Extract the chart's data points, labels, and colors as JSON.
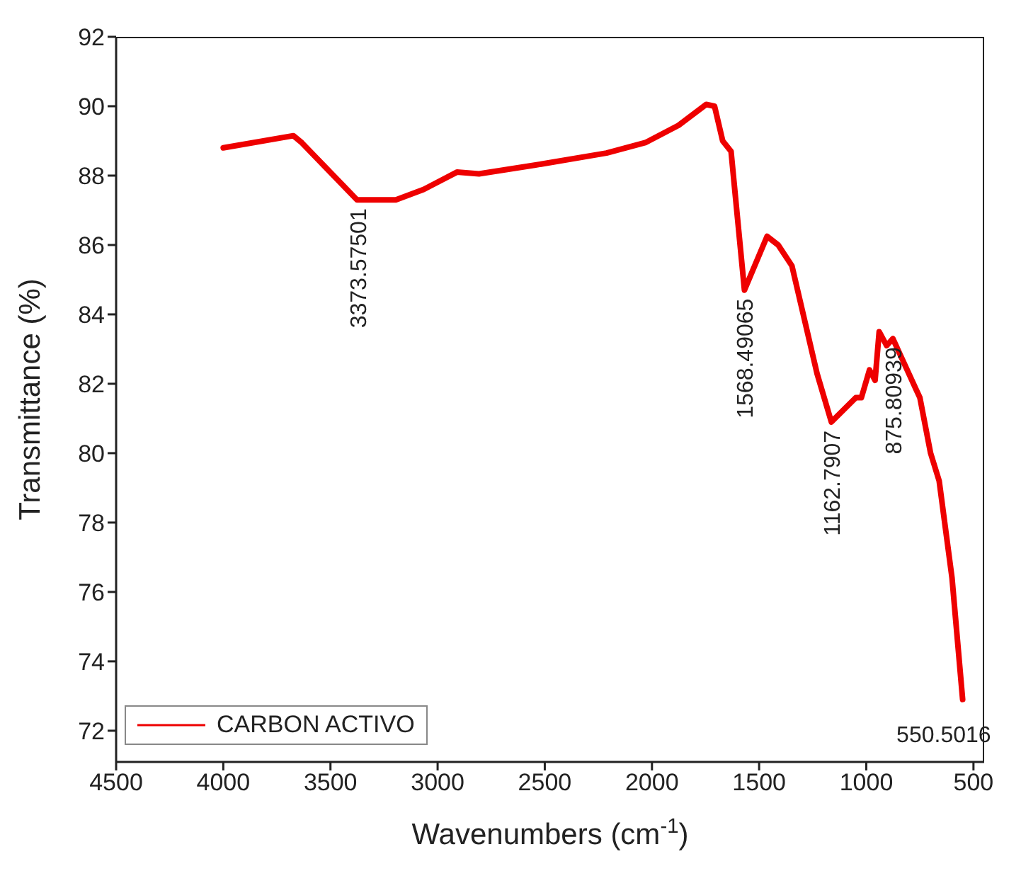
{
  "chart_data": {
    "type": "line",
    "xlabel": "Wavenumbers (cm$^{-1}$)",
    "ylabel": "Transmittance (%)",
    "xlim": [
      4500,
      450
    ],
    "xticks": [
      4500,
      4000,
      3500,
      3000,
      2500,
      2000,
      1500,
      1000,
      500
    ],
    "ylim": [
      71.1,
      92
    ],
    "yticks": [
      72,
      74,
      76,
      78,
      80,
      82,
      84,
      86,
      88,
      90,
      92
    ],
    "grid": false,
    "legend": "bottom left",
    "marker": "none",
    "line_style": "solid",
    "x": [
      4000,
      3673,
      3634,
      3376,
      3195,
      3065,
      2910,
      2807,
      2548,
      2212,
      2031,
      1876,
      1747,
      1708,
      1670,
      1631,
      1568.5,
      1463,
      1411,
      1347,
      1230,
      1163,
      1049,
      1023,
      985,
      959,
      940,
      905,
      876,
      765,
      750,
      700,
      660,
      600,
      550.5
    ],
    "series": [
      {
        "name": "CARBON ACTIVO",
        "color": "#ee0000",
        "values": [
          88.8,
          89.15,
          88.95,
          87.3,
          87.3,
          87.6,
          88.1,
          88.05,
          88.3,
          88.65,
          88.95,
          89.45,
          90.05,
          90.0,
          89.0,
          88.7,
          84.7,
          86.25,
          86.0,
          85.4,
          82.3,
          80.9,
          81.6,
          81.6,
          82.4,
          82.1,
          83.5,
          83.1,
          83.3,
          81.8,
          81.6,
          80.0,
          79.2,
          76.4,
          72.9
        ]
      }
    ],
    "annotations": [
      {
        "text": "3373.57501",
        "x": 3373.6,
        "y": 87.3
      },
      {
        "text": "1568.49065",
        "x": 1568.5,
        "y": 84.7
      },
      {
        "text": "1162.7907",
        "x": 1163,
        "y": 80.9
      },
      {
        "text": "875.80939",
        "x": 876,
        "y": 83.3
      },
      {
        "text": "550.5016",
        "x": 550.5,
        "y": 72.9
      }
    ]
  }
}
